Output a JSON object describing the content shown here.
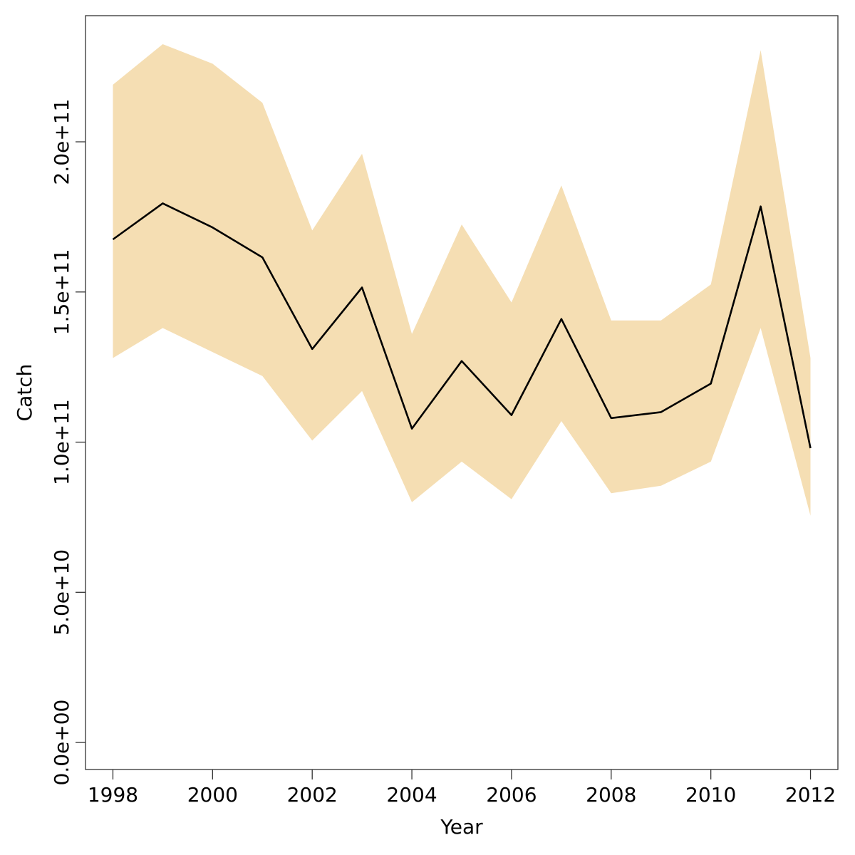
{
  "chart_data": {
    "type": "area",
    "xlabel": "Year",
    "ylabel": "Catch",
    "xlim": [
      1997.45,
      2012.55
    ],
    "ylim": [
      -9000000000.0,
      242000000000.0
    ],
    "x_ticks": [
      1998,
      2000,
      2002,
      2004,
      2006,
      2008,
      2010,
      2012
    ],
    "x_tick_labels": [
      "1998",
      "2000",
      "2002",
      "2004",
      "2006",
      "2008",
      "2010",
      "2012"
    ],
    "y_ticks": [
      0,
      50000000000.0,
      100000000000.0,
      150000000000.0,
      200000000000.0
    ],
    "y_tick_labels": [
      "0.0e+00",
      "5.0e+10",
      "1.0e+11",
      "1.5e+11",
      "2.0e+11"
    ],
    "x": [
      1998,
      1999,
      2000,
      2001,
      2002,
      2003,
      2004,
      2005,
      2006,
      2007,
      2008,
      2009,
      2010,
      2011,
      2012
    ],
    "series": [
      {
        "values": [
          167500000000.0,
          179500000000.0,
          171500000000.0,
          161500000000.0,
          131000000000.0,
          151500000000.0,
          104500000000.0,
          127000000000.0,
          109000000000.0,
          141000000000.0,
          108000000000.0,
          110000000000.0,
          119500000000.0,
          178500000000.0,
          98000000000.0
        ],
        "lower": [
          128000000000.0,
          138000000000.0,
          130000000000.0,
          122000000000.0,
          100500000000.0,
          117000000000.0,
          80000000000.0,
          93500000000.0,
          81000000000.0,
          107000000000.0,
          83000000000.0,
          85500000000.0,
          93500000000.0,
          138000000000.0,
          75500000000.0
        ],
        "upper": [
          219000000000.0,
          232500000000.0,
          226000000000.0,
          213000000000.0,
          170500000000.0,
          196000000000.0,
          136000000000.0,
          172500000000.0,
          146500000000.0,
          185500000000.0,
          140500000000.0,
          140500000000.0,
          152500000000.0,
          230500000000.0,
          128000000000.0
        ]
      }
    ],
    "colors": {
      "band": "#f5deb3",
      "line": "#000000",
      "axis": "#333333"
    },
    "grid": false,
    "legend": "none"
  }
}
